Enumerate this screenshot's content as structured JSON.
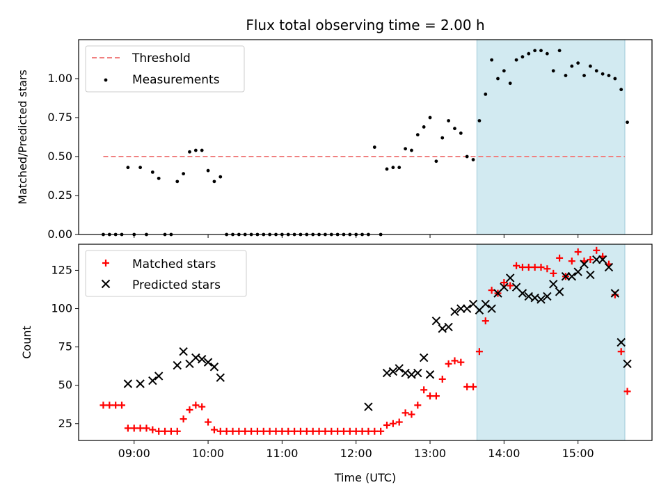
{
  "chart_data": [
    {
      "type": "scatter",
      "title": "Flux total observing time = 2.00 h",
      "xlabel": "",
      "ylabel": "Matched/Predicted stars",
      "xlim": [
        "08:15",
        "16:00"
      ],
      "ylim": [
        0,
        1.25
      ],
      "yticks": [
        "0.00",
        "0.25",
        "0.50",
        "0.75",
        "1.00"
      ],
      "shaded_interval": [
        "13:38",
        "15:38"
      ],
      "shade_color": "#add8e6",
      "legend_position": "top-left",
      "threshold": {
        "name": "Threshold",
        "value": 0.5,
        "x_range": [
          "08:35",
          "15:38"
        ],
        "color": "#f08080"
      },
      "series": [
        {
          "name": "Measurements",
          "marker": "dot",
          "color": "#000000",
          "points": [
            [
              "08:35",
              0
            ],
            [
              "08:40",
              0
            ],
            [
              "08:45",
              0
            ],
            [
              "08:50",
              0
            ],
            [
              "08:55",
              0.43
            ],
            [
              "09:00",
              0
            ],
            [
              "09:05",
              0.43
            ],
            [
              "09:10",
              0
            ],
            [
              "09:15",
              0.4
            ],
            [
              "09:20",
              0.36
            ],
            [
              "09:25",
              0
            ],
            [
              "09:30",
              0
            ],
            [
              "09:35",
              0.34
            ],
            [
              "09:40",
              0.39
            ],
            [
              "09:45",
              0.53
            ],
            [
              "09:50",
              0.54
            ],
            [
              "09:55",
              0.54
            ],
            [
              "10:00",
              0.41
            ],
            [
              "10:05",
              0.34
            ],
            [
              "10:10",
              0.37
            ],
            [
              "10:15",
              0
            ],
            [
              "10:20",
              0
            ],
            [
              "10:25",
              0
            ],
            [
              "10:30",
              0
            ],
            [
              "10:35",
              0
            ],
            [
              "10:40",
              0
            ],
            [
              "10:45",
              0
            ],
            [
              "10:50",
              0
            ],
            [
              "10:55",
              0
            ],
            [
              "11:00",
              0
            ],
            [
              "11:05",
              0
            ],
            [
              "11:10",
              0
            ],
            [
              "11:15",
              0
            ],
            [
              "11:20",
              0
            ],
            [
              "11:25",
              0
            ],
            [
              "11:30",
              0
            ],
            [
              "11:35",
              0
            ],
            [
              "11:40",
              0
            ],
            [
              "11:45",
              0
            ],
            [
              "11:50",
              0
            ],
            [
              "11:55",
              0
            ],
            [
              "12:00",
              0
            ],
            [
              "12:05",
              0
            ],
            [
              "12:10",
              0
            ],
            [
              "12:15",
              0.56
            ],
            [
              "12:20",
              0
            ],
            [
              "12:25",
              0.42
            ],
            [
              "12:30",
              0.43
            ],
            [
              "12:35",
              0.43
            ],
            [
              "12:40",
              0.55
            ],
            [
              "12:45",
              0.54
            ],
            [
              "12:50",
              0.64
            ],
            [
              "12:55",
              0.69
            ],
            [
              "13:00",
              0.75
            ],
            [
              "13:05",
              0.47
            ],
            [
              "13:10",
              0.62
            ],
            [
              "13:15",
              0.73
            ],
            [
              "13:20",
              0.68
            ],
            [
              "13:25",
              0.65
            ],
            [
              "13:30",
              0.5
            ],
            [
              "13:35",
              0.48
            ],
            [
              "13:40",
              0.73
            ],
            [
              "13:45",
              0.9
            ],
            [
              "13:50",
              1.12
            ],
            [
              "13:55",
              1.0
            ],
            [
              "14:00",
              1.05
            ],
            [
              "14:05",
              0.97
            ],
            [
              "14:10",
              1.12
            ],
            [
              "14:15",
              1.14
            ],
            [
              "14:20",
              1.16
            ],
            [
              "14:25",
              1.18
            ],
            [
              "14:30",
              1.18
            ],
            [
              "14:35",
              1.16
            ],
            [
              "14:40",
              1.05
            ],
            [
              "14:45",
              1.18
            ],
            [
              "14:50",
              1.02
            ],
            [
              "14:55",
              1.08
            ],
            [
              "15:00",
              1.1
            ],
            [
              "15:05",
              1.02
            ],
            [
              "15:10",
              1.08
            ],
            [
              "15:15",
              1.05
            ],
            [
              "15:20",
              1.03
            ],
            [
              "15:25",
              1.02
            ],
            [
              "15:30",
              1.0
            ],
            [
              "15:35",
              0.93
            ],
            [
              "15:40",
              0.72
            ]
          ]
        }
      ]
    },
    {
      "type": "scatter",
      "title": "",
      "xlabel": "Time (UTC)",
      "ylabel": "Count",
      "xlim": [
        "08:15",
        "16:00"
      ],
      "ylim": [
        14,
        142
      ],
      "yticks": [
        "25",
        "50",
        "75",
        "100",
        "125"
      ],
      "xticks": [
        "09:00",
        "10:00",
        "11:00",
        "12:00",
        "13:00",
        "14:00",
        "15:00"
      ],
      "shaded_interval": [
        "13:38",
        "15:38"
      ],
      "shade_color": "#add8e6",
      "legend_position": "top-left",
      "series": [
        {
          "name": "Matched stars",
          "marker": "plus",
          "color": "#ff0000",
          "points": [
            [
              "08:35",
              37
            ],
            [
              "08:40",
              37
            ],
            [
              "08:45",
              37
            ],
            [
              "08:50",
              37
            ],
            [
              "08:55",
              22
            ],
            [
              "09:00",
              22
            ],
            [
              "09:05",
              22
            ],
            [
              "09:10",
              22
            ],
            [
              "09:15",
              21
            ],
            [
              "09:20",
              20
            ],
            [
              "09:25",
              20
            ],
            [
              "09:30",
              20
            ],
            [
              "09:35",
              20
            ],
            [
              "09:40",
              28
            ],
            [
              "09:45",
              34
            ],
            [
              "09:50",
              37
            ],
            [
              "09:55",
              36
            ],
            [
              "10:00",
              26
            ],
            [
              "10:05",
              21
            ],
            [
              "10:10",
              20
            ],
            [
              "10:15",
              20
            ],
            [
              "10:20",
              20
            ],
            [
              "10:25",
              20
            ],
            [
              "10:30",
              20
            ],
            [
              "10:35",
              20
            ],
            [
              "10:40",
              20
            ],
            [
              "10:45",
              20
            ],
            [
              "10:50",
              20
            ],
            [
              "10:55",
              20
            ],
            [
              "11:00",
              20
            ],
            [
              "11:05",
              20
            ],
            [
              "11:10",
              20
            ],
            [
              "11:15",
              20
            ],
            [
              "11:20",
              20
            ],
            [
              "11:25",
              20
            ],
            [
              "11:30",
              20
            ],
            [
              "11:35",
              20
            ],
            [
              "11:40",
              20
            ],
            [
              "11:45",
              20
            ],
            [
              "11:50",
              20
            ],
            [
              "11:55",
              20
            ],
            [
              "12:00",
              20
            ],
            [
              "12:05",
              20
            ],
            [
              "12:10",
              20
            ],
            [
              "12:15",
              20
            ],
            [
              "12:20",
              20
            ],
            [
              "12:25",
              24
            ],
            [
              "12:30",
              25
            ],
            [
              "12:35",
              26
            ],
            [
              "12:40",
              32
            ],
            [
              "12:45",
              31
            ],
            [
              "12:50",
              37
            ],
            [
              "12:55",
              47
            ],
            [
              "13:00",
              43
            ],
            [
              "13:05",
              43
            ],
            [
              "13:10",
              54
            ],
            [
              "13:15",
              64
            ],
            [
              "13:20",
              66
            ],
            [
              "13:25",
              65
            ],
            [
              "13:30",
              49
            ],
            [
              "13:35",
              49
            ],
            [
              "13:40",
              72
            ],
            [
              "13:45",
              92
            ],
            [
              "13:50",
              112
            ],
            [
              "13:55",
              110
            ],
            [
              "14:00",
              117
            ],
            [
              "14:05",
              115
            ],
            [
              "14:10",
              128
            ],
            [
              "14:15",
              127
            ],
            [
              "14:20",
              127
            ],
            [
              "14:25",
              127
            ],
            [
              "14:30",
              127
            ],
            [
              "14:35",
              126
            ],
            [
              "14:40",
              123
            ],
            [
              "14:45",
              133
            ],
            [
              "14:50",
              121
            ],
            [
              "14:55",
              131
            ],
            [
              "15:00",
              137
            ],
            [
              "15:05",
              131
            ],
            [
              "15:10",
              132
            ],
            [
              "15:15",
              138
            ],
            [
              "15:20",
              134
            ],
            [
              "15:25",
              129
            ],
            [
              "15:30",
              109
            ],
            [
              "15:35",
              72
            ],
            [
              "15:40",
              46
            ]
          ]
        },
        {
          "name": "Predicted stars",
          "marker": "x",
          "color": "#000000",
          "points": [
            [
              "08:55",
              51
            ],
            [
              "09:05",
              51
            ],
            [
              "09:15",
              53
            ],
            [
              "09:20",
              56
            ],
            [
              "09:35",
              63
            ],
            [
              "09:40",
              72
            ],
            [
              "09:45",
              64
            ],
            [
              "09:50",
              68
            ],
            [
              "09:55",
              67
            ],
            [
              "10:00",
              65
            ],
            [
              "10:05",
              62
            ],
            [
              "10:10",
              55
            ],
            [
              "12:10",
              36
            ],
            [
              "12:25",
              58
            ],
            [
              "12:30",
              59
            ],
            [
              "12:35",
              61
            ],
            [
              "12:40",
              58
            ],
            [
              "12:45",
              57
            ],
            [
              "12:50",
              58
            ],
            [
              "12:55",
              68
            ],
            [
              "13:00",
              57
            ],
            [
              "13:05",
              92
            ],
            [
              "13:10",
              87
            ],
            [
              "13:15",
              88
            ],
            [
              "13:20",
              98
            ],
            [
              "13:25",
              100
            ],
            [
              "13:30",
              100
            ],
            [
              "13:35",
              103
            ],
            [
              "13:40",
              99
            ],
            [
              "13:45",
              103
            ],
            [
              "13:50",
              100
            ],
            [
              "13:55",
              110
            ],
            [
              "14:00",
              114
            ],
            [
              "14:05",
              120
            ],
            [
              "14:10",
              114
            ],
            [
              "14:15",
              110
            ],
            [
              "14:20",
              108
            ],
            [
              "14:25",
              107
            ],
            [
              "14:30",
              106
            ],
            [
              "14:35",
              108
            ],
            [
              "14:40",
              116
            ],
            [
              "14:45",
              111
            ],
            [
              "14:50",
              121
            ],
            [
              "14:55",
              121
            ],
            [
              "15:00",
              124
            ],
            [
              "15:05",
              129
            ],
            [
              "15:10",
              122
            ],
            [
              "15:15",
              132
            ],
            [
              "15:20",
              132
            ],
            [
              "15:25",
              127
            ],
            [
              "15:30",
              110
            ],
            [
              "15:35",
              78
            ],
            [
              "15:40",
              64
            ]
          ]
        }
      ]
    }
  ]
}
